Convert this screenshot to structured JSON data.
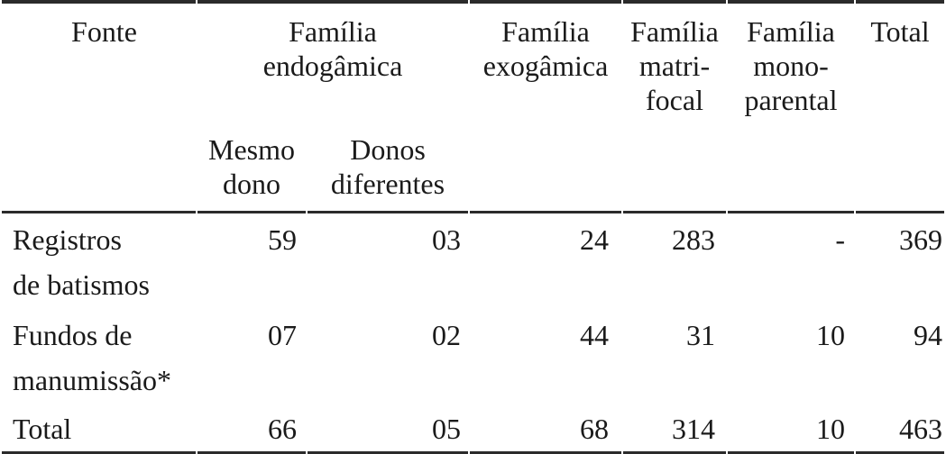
{
  "colors": {
    "text": "#1a1a1a",
    "rule": "#2b2b2b",
    "background": "#ffffff"
  },
  "table": {
    "header": {
      "fonte": "Fonte",
      "groups": [
        {
          "lines": [
            "Família",
            "endogâmica"
          ],
          "colspan": 2
        },
        {
          "lines": [
            "Família",
            "exogâmica"
          ],
          "colspan": 1
        },
        {
          "lines": [
            "Família",
            "matri-",
            "focal"
          ],
          "colspan": 1
        },
        {
          "lines": [
            "Família",
            "mono-",
            "parental"
          ],
          "colspan": 1
        },
        {
          "lines": [
            "Total"
          ],
          "colspan": 1
        }
      ],
      "subheaders": [
        {
          "lines": [
            "Mesmo",
            "dono"
          ]
        },
        {
          "lines": [
            "Donos",
            "diferentes"
          ]
        }
      ]
    },
    "rows": [
      {
        "label_lines": [
          "Registros",
          "de batismos"
        ],
        "values": [
          "59",
          "03",
          "24",
          "283",
          "-",
          "369"
        ]
      },
      {
        "label_lines": [
          "Fundos de",
          "manumissão*"
        ],
        "values": [
          "07",
          "02",
          "44",
          "31",
          "10",
          "94"
        ]
      },
      {
        "label_lines": [
          "Total"
        ],
        "values": [
          "66",
          "05",
          "68",
          "314",
          "10",
          "463"
        ]
      }
    ]
  },
  "chart_data": {
    "type": "table",
    "columns": [
      "Fonte",
      "Família endogâmica — Mesmo dono",
      "Família endogâmica — Donos diferentes",
      "Família exogâmica",
      "Família matrifocal",
      "Família monoparental",
      "Total"
    ],
    "rows": [
      [
        "Registros de batismos",
        "59",
        "03",
        "24",
        "283",
        "-",
        "369"
      ],
      [
        "Fundos de manumissão*",
        "07",
        "02",
        "44",
        "31",
        "10",
        "94"
      ],
      [
        "Total",
        "66",
        "05",
        "68",
        "314",
        "10",
        "463"
      ]
    ]
  }
}
